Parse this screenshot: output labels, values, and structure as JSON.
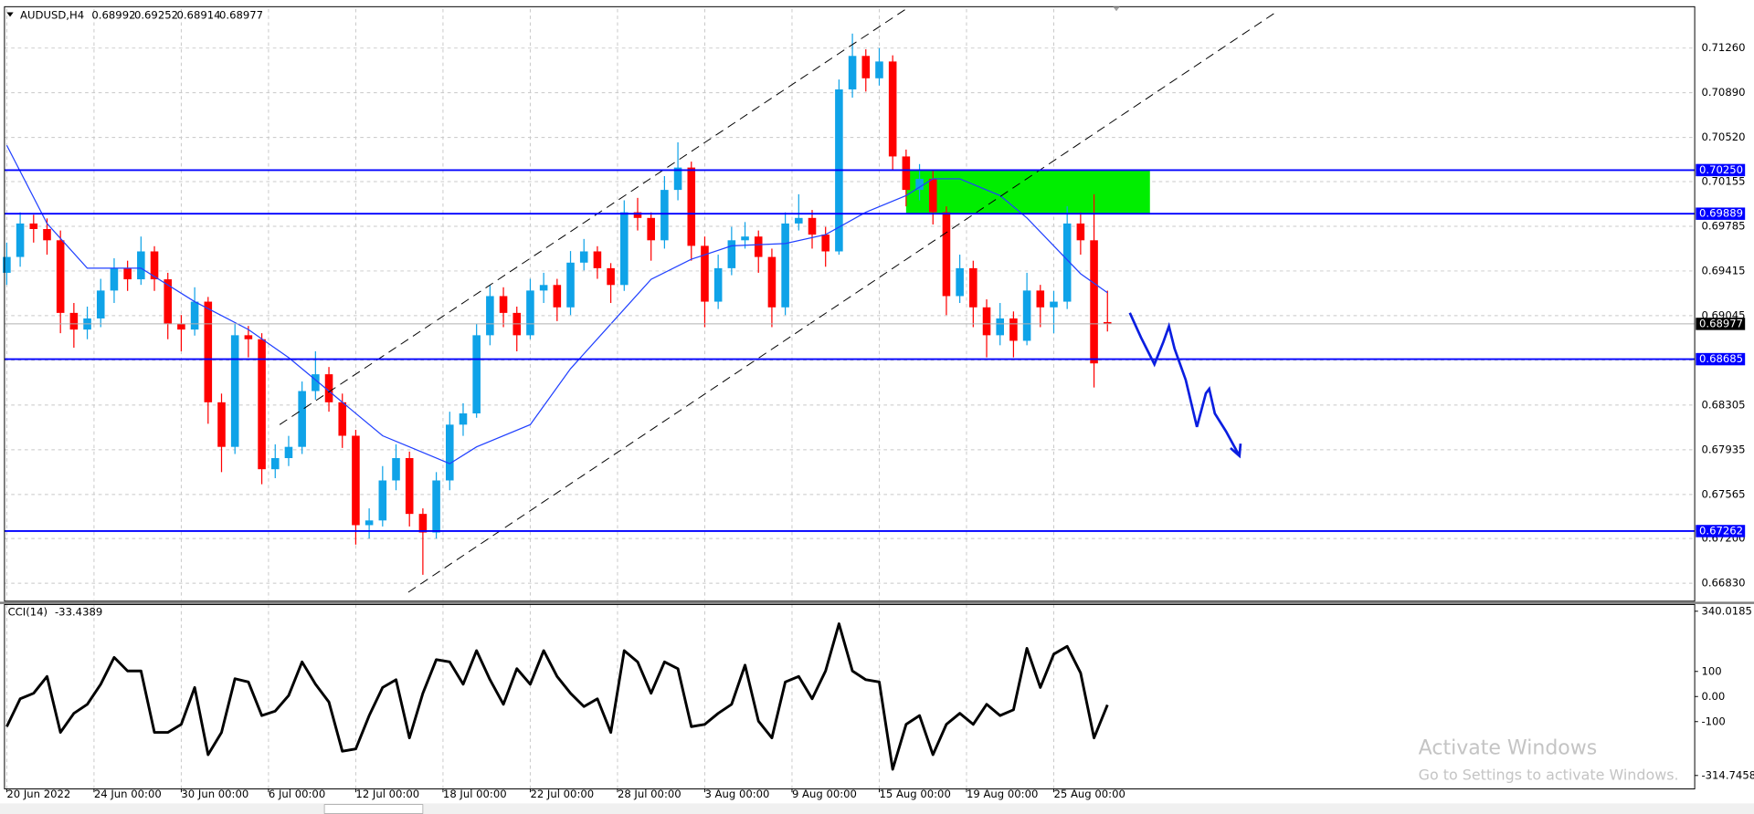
{
  "chart_data": [
    {
      "type": "candlestick",
      "symbol": "AUDUSD,H4",
      "candles": [
        [
          0.694,
          0.6965,
          0.693,
          0.69531
        ],
        [
          0.69531,
          0.699,
          0.6945,
          0.69808
        ],
        [
          0.69808,
          0.6988,
          0.6965,
          0.69762
        ],
        [
          0.69762,
          0.6985,
          0.6955,
          0.69669
        ],
        [
          0.69669,
          0.6975,
          0.689,
          0.69068
        ],
        [
          0.69068,
          0.6915,
          0.6878,
          0.6893
        ],
        [
          0.6893,
          0.6912,
          0.6885,
          0.69022
        ],
        [
          0.69022,
          0.6935,
          0.6895,
          0.69253
        ],
        [
          0.69253,
          0.6952,
          0.6915,
          0.69438
        ],
        [
          0.69438,
          0.695,
          0.6925,
          0.69346
        ],
        [
          0.69346,
          0.697,
          0.693,
          0.69577
        ],
        [
          0.69577,
          0.6962,
          0.6925,
          0.69346
        ],
        [
          0.69346,
          0.694,
          0.6885,
          0.68976
        ],
        [
          0.68976,
          0.6905,
          0.6875,
          0.6893
        ],
        [
          0.6893,
          0.6928,
          0.6888,
          0.69161
        ],
        [
          0.69161,
          0.692,
          0.6815,
          0.68328
        ],
        [
          0.68328,
          0.684,
          0.6775,
          0.67959
        ],
        [
          0.67959,
          0.6898,
          0.679,
          0.68883
        ],
        [
          0.68883,
          0.6896,
          0.687,
          0.6885
        ],
        [
          0.6885,
          0.689,
          0.6765,
          0.67774
        ],
        [
          0.67774,
          0.6798,
          0.677,
          0.67866
        ],
        [
          0.67866,
          0.6805,
          0.678,
          0.67959
        ],
        [
          0.67959,
          0.685,
          0.679,
          0.68421
        ],
        [
          0.68421,
          0.6875,
          0.6835,
          0.6856
        ],
        [
          0.6856,
          0.6862,
          0.6825,
          0.68328
        ],
        [
          0.68328,
          0.684,
          0.6795,
          0.68051
        ],
        [
          0.68051,
          0.681,
          0.6715,
          0.67311
        ],
        [
          0.67311,
          0.6745,
          0.672,
          0.6735
        ],
        [
          0.6735,
          0.678,
          0.673,
          0.67681
        ],
        [
          0.67681,
          0.6798,
          0.676,
          0.67866
        ],
        [
          0.67866,
          0.6792,
          0.673,
          0.67404
        ],
        [
          0.67404,
          0.6745,
          0.669,
          0.6725
        ],
        [
          0.6725,
          0.6775,
          0.672,
          0.67681
        ],
        [
          0.67681,
          0.6825,
          0.676,
          0.68143
        ],
        [
          0.68143,
          0.6832,
          0.6805,
          0.68236
        ],
        [
          0.68236,
          0.6898,
          0.682,
          0.68883
        ],
        [
          0.68883,
          0.693,
          0.688,
          0.69207
        ],
        [
          0.69207,
          0.6928,
          0.6895,
          0.69068
        ],
        [
          0.69068,
          0.6912,
          0.6875,
          0.68883
        ],
        [
          0.68883,
          0.6935,
          0.6885,
          0.69253
        ],
        [
          0.69253,
          0.694,
          0.6915,
          0.69299
        ],
        [
          0.69299,
          0.6935,
          0.69,
          0.69114
        ],
        [
          0.69114,
          0.6958,
          0.6905,
          0.69484
        ],
        [
          0.69484,
          0.6968,
          0.6942,
          0.69577
        ],
        [
          0.69577,
          0.6962,
          0.6935,
          0.69438
        ],
        [
          0.69438,
          0.6948,
          0.6915,
          0.69299
        ],
        [
          0.69299,
          0.7,
          0.6925,
          0.69901
        ],
        [
          0.69901,
          0.7002,
          0.6975,
          0.69854
        ],
        [
          0.69854,
          0.699,
          0.695,
          0.69669
        ],
        [
          0.69669,
          0.702,
          0.696,
          0.70086
        ],
        [
          0.70086,
          0.7048,
          0.7,
          0.70271
        ],
        [
          0.70271,
          0.7032,
          0.695,
          0.69623
        ],
        [
          0.69623,
          0.697,
          0.6895,
          0.69161
        ],
        [
          0.69161,
          0.6955,
          0.691,
          0.69438
        ],
        [
          0.69438,
          0.6978,
          0.6938,
          0.69669
        ],
        [
          0.69669,
          0.6982,
          0.696,
          0.697
        ],
        [
          0.697,
          0.6975,
          0.694,
          0.69531
        ],
        [
          0.69531,
          0.696,
          0.6895,
          0.69114
        ],
        [
          0.69114,
          0.699,
          0.6905,
          0.69808
        ],
        [
          0.69808,
          0.7005,
          0.6975,
          0.69854
        ],
        [
          0.69854,
          0.6992,
          0.696,
          0.69716
        ],
        [
          0.69716,
          0.6978,
          0.6945,
          0.69577
        ],
        [
          0.69577,
          0.71,
          0.6955,
          0.70918
        ],
        [
          0.70918,
          0.7138,
          0.7085,
          0.71195
        ],
        [
          0.71195,
          0.7125,
          0.709,
          0.7101
        ],
        [
          0.7101,
          0.7126,
          0.7095,
          0.71149
        ],
        [
          0.71149,
          0.712,
          0.7025,
          0.70363
        ],
        [
          0.70363,
          0.7042,
          0.6995,
          0.70086
        ],
        [
          0.70086,
          0.703,
          0.7,
          0.70178
        ],
        [
          0.70178,
          0.7025,
          0.698,
          0.69901
        ],
        [
          0.69901,
          0.6995,
          0.6905,
          0.69207
        ],
        [
          0.69207,
          0.6955,
          0.6915,
          0.69438
        ],
        [
          0.69438,
          0.695,
          0.6895,
          0.69114
        ],
        [
          0.69114,
          0.6918,
          0.687,
          0.68883
        ],
        [
          0.68883,
          0.6915,
          0.688,
          0.69022
        ],
        [
          0.69022,
          0.6908,
          0.687,
          0.68837
        ],
        [
          0.68837,
          0.694,
          0.688,
          0.69253
        ],
        [
          0.69253,
          0.693,
          0.6895,
          0.69114
        ],
        [
          0.69114,
          0.6925,
          0.689,
          0.69161
        ],
        [
          0.69161,
          0.6995,
          0.691,
          0.69808
        ],
        [
          0.69808,
          0.699,
          0.6955,
          0.69669
        ],
        [
          0.69669,
          0.7005,
          0.6845,
          0.6865
        ],
        [
          0.68992,
          0.69252,
          0.68914,
          0.68977
        ]
      ],
      "colors": {
        "up": "#0fa3e8",
        "down": "#ff0000"
      },
      "xlim": [
        -0.17,
        125.75
      ],
      "xticks": [
        {
          "value": 0,
          "label": "20 Jun 2022"
        },
        {
          "value": 6.5,
          "label": "24 Jun 00:00"
        },
        {
          "value": 13,
          "label": "30 Jun 00:00"
        },
        {
          "value": 19.5,
          "label": "6 Jul 00:00"
        },
        {
          "value": 26,
          "label": "12 Jul 00:00"
        },
        {
          "value": 32.5,
          "label": "18 Jul 00:00"
        },
        {
          "value": 39,
          "label": "22 Jul 00:00"
        },
        {
          "value": 45.5,
          "label": "28 Jul 00:00"
        },
        {
          "value": 52,
          "label": "3 Aug 00:00"
        },
        {
          "value": 58.5,
          "label": "9 Aug 00:00"
        },
        {
          "value": 65,
          "label": "15 Aug 00:00"
        },
        {
          "value": 71.5,
          "label": "19 Aug 00:00"
        },
        {
          "value": 78,
          "label": "25 Aug 00:00"
        }
      ],
      "ylim": [
        0.66691,
        0.71584
      ],
      "yticks": [
        {
          "value": 0.7126,
          "label": "0.71260"
        },
        {
          "value": 0.7089,
          "label": "0.70890"
        },
        {
          "value": 0.7052,
          "label": "0.70520"
        },
        0.70155,
        0.69785,
        0.69415,
        0.69045,
        0.68675,
        0.68305,
        0.67935,
        0.67565,
        {
          "value": 0.672,
          "label": "0.67200"
        },
        {
          "value": 0.6683,
          "label": "0.66830"
        }
      ],
      "grid": true,
      "ma": {
        "color": "#2040ff",
        "x": [
          0,
          3,
          6,
          10,
          14,
          18,
          21,
          24,
          28,
          30,
          33,
          35,
          39,
          42,
          45,
          48,
          51,
          54,
          58,
          61,
          64,
          67,
          69,
          71,
          74,
          76,
          78,
          80,
          82
        ],
        "values": [
          0.70455,
          0.69808,
          0.69438,
          0.69438,
          0.69161,
          0.6893,
          0.68698,
          0.68421,
          0.68051,
          0.67959,
          0.6782,
          0.67959,
          0.68143,
          0.68606,
          0.68976,
          0.69346,
          0.69512,
          0.69623,
          0.69642,
          0.69716,
          0.69901,
          0.70039,
          0.70178,
          0.70178,
          0.70039,
          0.69854,
          0.69623,
          0.69392,
          0.69235
        ]
      },
      "hlines": {
        "color": "#0000ff",
        "values": [
          0.7025,
          0.69889,
          0.68685,
          0.67262
        ],
        "value_labels": [
          "0.70250",
          "0.69889",
          "0.68685",
          "0.67262"
        ]
      }
    },
    {
      "type": "line",
      "name": "CCI(14)",
      "color": "#000000",
      "values": [
        -120,
        -9,
        13,
        80,
        -143,
        -67,
        -31,
        49,
        156,
        102,
        102,
        -143,
        -143,
        -111,
        36,
        -232,
        -143,
        71,
        58,
        -76,
        -58,
        4,
        138,
        49,
        -22,
        -218,
        -209,
        -76,
        36,
        67,
        -165,
        13,
        147,
        138,
        49,
        183,
        67,
        -31,
        111,
        49,
        183,
        80,
        13,
        -40,
        -9,
        -143,
        183,
        138,
        13,
        138,
        111,
        -120,
        -111,
        -67,
        -31,
        125,
        -98,
        -165,
        58,
        80,
        -9,
        102,
        290,
        102,
        67,
        58,
        -290,
        -111,
        -76,
        -232,
        -111,
        -67,
        -111,
        -31,
        -76,
        -53,
        192,
        36,
        169,
        200,
        94,
        -165,
        -33.4389
      ],
      "ylim": [
        -314.7458,
        340.0185
      ],
      "yticks": [
        340.0185,
        100,
        {
          "value": 0,
          "label": "0.00"
        },
        -100,
        -314.7458
      ]
    }
  ],
  "watermark": {
    "title": "Activate Windows",
    "subtitle": "Go to Settings to activate Windows."
  }
}
